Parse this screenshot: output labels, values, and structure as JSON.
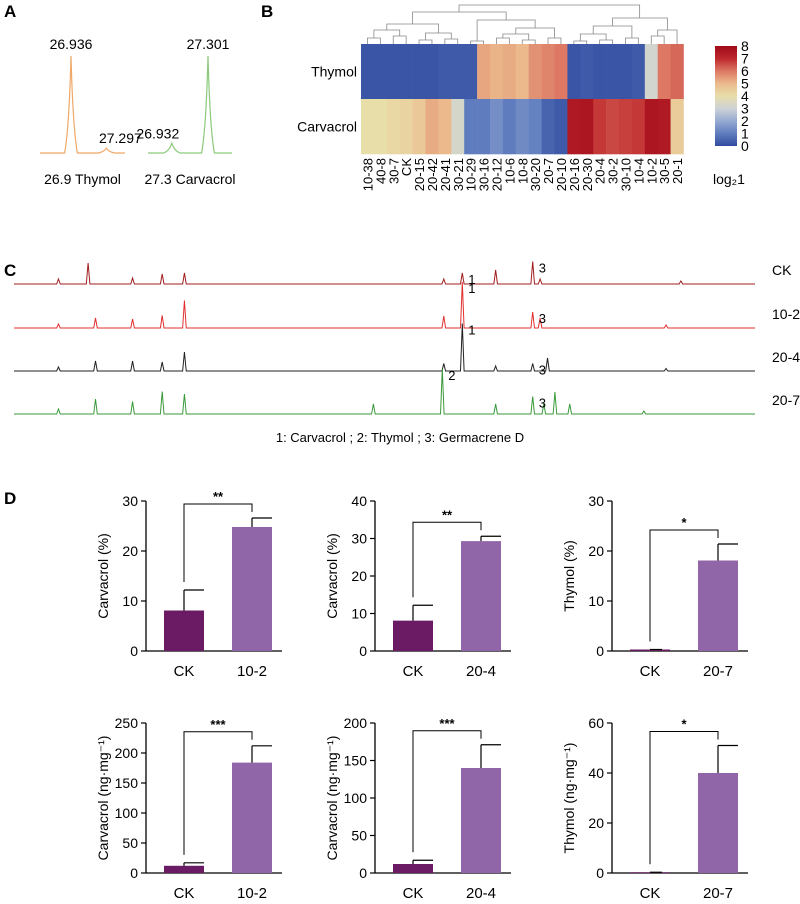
{
  "figure": {
    "panel_labels": [
      "A",
      "B",
      "C",
      "D"
    ]
  },
  "chart_data": [
    {
      "panel": "A",
      "type": "line",
      "subplots": [
        {
          "caption": "26.9 Thymol",
          "color": "#f0a868",
          "peaks": [
            {
              "x": 26.936,
              "height": 1.0,
              "label": "26.936"
            },
            {
              "x": 27.297,
              "height": 0.05,
              "label": "27.297"
            }
          ]
        },
        {
          "caption": "27.3 Carvacrol",
          "color": "#8cc97a",
          "peaks": [
            {
              "x": 26.932,
              "height": 0.1,
              "label": "26.932"
            },
            {
              "x": 27.301,
              "height": 1.0,
              "label": "27.301"
            }
          ]
        }
      ]
    },
    {
      "panel": "B",
      "type": "heatmap",
      "rows": [
        "Thymol",
        "Carvacrol"
      ],
      "columns": [
        "10-38",
        "40-8",
        "30-7",
        "CK",
        "20-15",
        "20-42",
        "20-41",
        "30-21",
        "10-29",
        "30-16",
        "20-12",
        "10-6",
        "10-8",
        "30-20",
        "20-7",
        "20-10",
        "20-16",
        "20-30",
        "20-4",
        "30-2",
        "30-10",
        "10-4",
        "10-2",
        "30-5",
        "20-1"
      ],
      "values": [
        [
          0.2,
          0.2,
          0.2,
          0.2,
          0.2,
          0.2,
          0.3,
          0.3,
          0.3,
          5.3,
          5.1,
          5.2,
          5.0,
          5.6,
          5.8,
          6.0,
          0.2,
          0.3,
          0.2,
          0.2,
          0.2,
          0.3,
          3.2,
          6.0,
          6.2
        ],
        [
          4.0,
          4.0,
          4.2,
          4.3,
          4.6,
          5.2,
          5.0,
          3.3,
          1.0,
          1.0,
          1.4,
          1.0,
          1.3,
          1.1,
          0.5,
          0.3,
          7.5,
          7.6,
          6.8,
          6.6,
          6.7,
          6.8,
          7.6,
          7.5,
          4.5
        ]
      ],
      "colorbar": {
        "ticks": [
          "0",
          "1",
          "2",
          "3",
          "4",
          "5",
          "6",
          "7",
          "8"
        ],
        "min": 0,
        "max": 8,
        "label": "log₂1"
      }
    },
    {
      "panel": "C",
      "type": "line",
      "traces": [
        {
          "name": "CK",
          "color": "#a01e1e",
          "peaks": [
            [
              0.06,
              0.1
            ],
            [
              0.1,
              0.42
            ],
            [
              0.16,
              0.12
            ],
            [
              0.2,
              0.2
            ],
            [
              0.23,
              0.22
            ],
            [
              0.58,
              0.1
            ],
            [
              0.605,
              0.22
            ],
            [
              0.65,
              0.28
            ],
            [
              0.7,
              0.45
            ],
            [
              0.71,
              0.1
            ],
            [
              0.9,
              0.06
            ]
          ]
        },
        {
          "name": "10-2",
          "color": "#e03030",
          "peaks": [
            [
              0.06,
              0.08
            ],
            [
              0.11,
              0.2
            ],
            [
              0.16,
              0.18
            ],
            [
              0.2,
              0.25
            ],
            [
              0.23,
              0.55
            ],
            [
              0.58,
              0.24
            ],
            [
              0.605,
              0.92
            ],
            [
              0.7,
              0.32
            ],
            [
              0.71,
              0.2
            ],
            [
              0.88,
              0.06
            ]
          ]
        },
        {
          "name": "20-4",
          "color": "#222222",
          "peaks": [
            [
              0.06,
              0.08
            ],
            [
              0.11,
              0.2
            ],
            [
              0.16,
              0.2
            ],
            [
              0.2,
              0.18
            ],
            [
              0.23,
              0.38
            ],
            [
              0.58,
              0.15
            ],
            [
              0.605,
              0.95
            ],
            [
              0.65,
              0.1
            ],
            [
              0.7,
              0.15
            ],
            [
              0.72,
              0.26
            ],
            [
              0.88,
              0.05
            ]
          ]
        },
        {
          "name": "20-7",
          "color": "#3a9a3a",
          "peaks": [
            [
              0.06,
              0.1
            ],
            [
              0.11,
              0.3
            ],
            [
              0.16,
              0.25
            ],
            [
              0.2,
              0.45
            ],
            [
              0.23,
              0.4
            ],
            [
              0.485,
              0.2
            ],
            [
              0.578,
              0.9
            ],
            [
              0.65,
              0.2
            ],
            [
              0.7,
              0.35
            ],
            [
              0.715,
              0.2
            ],
            [
              0.73,
              0.44
            ],
            [
              0.75,
              0.2
            ],
            [
              0.85,
              0.06
            ]
          ]
        }
      ],
      "annotations": [
        {
          "trace": 0,
          "label": "1",
          "at": 0.605
        },
        {
          "trace": 0,
          "label": "3",
          "at": 0.7
        },
        {
          "trace": 1,
          "label": "1",
          "at": 0.605
        },
        {
          "trace": 1,
          "label": "3",
          "at": 0.7
        },
        {
          "trace": 2,
          "label": "1",
          "at": 0.605
        },
        {
          "trace": 2,
          "label": "3",
          "at": 0.7
        },
        {
          "trace": 3,
          "label": "2",
          "at": 0.578
        },
        {
          "trace": 3,
          "label": "3",
          "at": 0.7
        }
      ],
      "legend": "1: Carvacrol ;  2: Thymol ;  3: Germacrene D"
    },
    {
      "panel": "D",
      "type": "bar",
      "colors": {
        "CK": "#6a1b63",
        "treatment": "#9166a8"
      },
      "subplots": [
        {
          "ylabel": "Carvacrol (%)",
          "categories": [
            "CK",
            "10-2"
          ],
          "values": [
            8.1,
            24.8
          ],
          "errors": [
            4.1,
            1.8
          ],
          "ylim": [
            0,
            30
          ],
          "yticks": [
            "0",
            "10",
            "20",
            "30"
          ],
          "significance": "**"
        },
        {
          "ylabel": "Carvacrol (%)",
          "categories": [
            "CK",
            "20-4"
          ],
          "values": [
            8.1,
            29.3
          ],
          "errors": [
            4.1,
            1.3
          ],
          "ylim": [
            0,
            40
          ],
          "yticks": [
            "0",
            "10",
            "20",
            "30",
            "40"
          ],
          "significance": "**"
        },
        {
          "ylabel": "Thymol (%)",
          "categories": [
            "CK",
            "20-7"
          ],
          "values": [
            0.3,
            18.1
          ],
          "errors": [
            0.0,
            3.3
          ],
          "ylim": [
            0,
            30
          ],
          "yticks": [
            "0",
            "10",
            "20",
            "30"
          ],
          "significance": "*"
        },
        {
          "ylabel": "Carvacrol (ng·mg⁻¹)",
          "categories": [
            "CK",
            "10-2"
          ],
          "values": [
            12,
            184
          ],
          "errors": [
            5,
            28
          ],
          "ylim": [
            0,
            250
          ],
          "yticks": [
            "0",
            "50",
            "100",
            "150",
            "200",
            "250"
          ],
          "significance": "***"
        },
        {
          "ylabel": "Carvacrol (ng·mg⁻¹)",
          "categories": [
            "CK",
            "20-4"
          ],
          "values": [
            12,
            140
          ],
          "errors": [
            5,
            31
          ],
          "ylim": [
            0,
            200
          ],
          "yticks": [
            "0",
            "50",
            "100",
            "150",
            "200"
          ],
          "significance": "***"
        },
        {
          "ylabel": "Thymol (ng·mg⁻¹)",
          "categories": [
            "CK",
            "20-7"
          ],
          "values": [
            0.3,
            40
          ],
          "errors": [
            0.0,
            11
          ],
          "ylim": [
            0,
            60
          ],
          "yticks": [
            "0",
            "20",
            "40",
            "60"
          ],
          "significance": "*"
        }
      ]
    }
  ]
}
